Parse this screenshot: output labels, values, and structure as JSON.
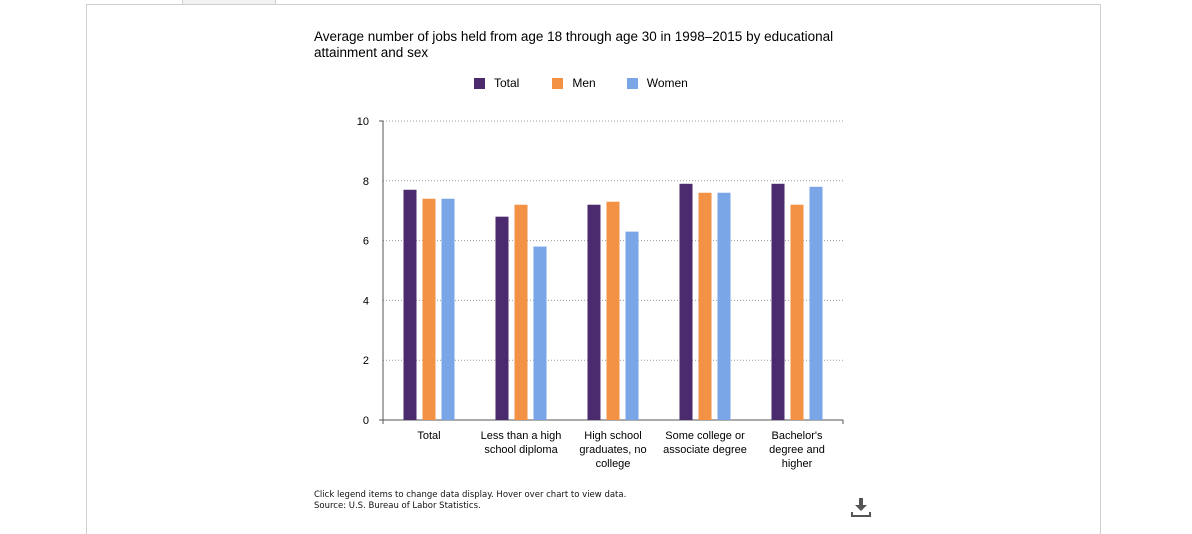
{
  "colors": {
    "total": "#4b2a6e",
    "men": "#f39244",
    "women": "#7aa5e6"
  },
  "chart_data": {
    "type": "bar",
    "title": "Average number of jobs held from age 18 through age 30 in 1998–2015 by educational attainment and sex",
    "xlabel": "",
    "ylabel": "",
    "ylim": [
      0,
      10
    ],
    "yticks": [
      "0",
      "2",
      "4",
      "6",
      "8",
      "10"
    ],
    "grid": true,
    "legend_position": "top",
    "categories": [
      [
        "Total"
      ],
      [
        "Less than a high",
        "school diploma"
      ],
      [
        "High school",
        "graduates, no",
        "college"
      ],
      [
        "Some college or",
        "associate degree"
      ],
      [
        "Bachelor's",
        "degree and",
        "higher"
      ]
    ],
    "series": [
      {
        "name": "Total",
        "values": [
          7.7,
          6.8,
          7.2,
          7.9,
          7.9
        ]
      },
      {
        "name": "Men",
        "values": [
          7.4,
          7.2,
          7.3,
          7.6,
          7.2
        ]
      },
      {
        "name": "Women",
        "values": [
          7.4,
          5.8,
          6.3,
          7.6,
          7.8
        ]
      }
    ]
  },
  "footnote": {
    "line1": "Click legend items to change data display. Hover over chart to view data.",
    "line2": "Source: U.S. Bureau of Labor Statistics."
  },
  "download_icon": "download-icon"
}
